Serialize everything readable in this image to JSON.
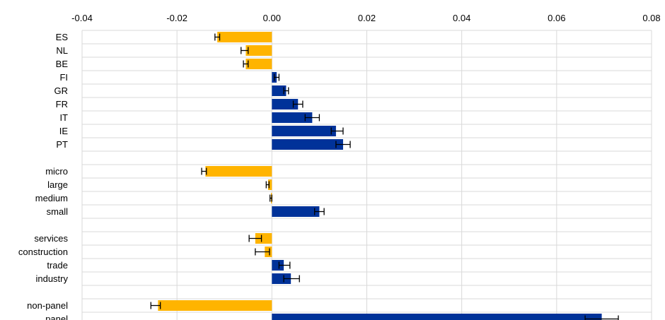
{
  "chart_data": {
    "type": "bar",
    "orientation": "horizontal",
    "title": "",
    "xlabel": "",
    "ylabel": "",
    "xlim": [
      -0.04,
      0.08
    ],
    "x_ticks": [
      "-0.04",
      "-0.02",
      "0.00",
      "0.02",
      "0.04",
      "0.06",
      "0.08"
    ],
    "x_tick_values": [
      -0.04,
      -0.02,
      0.0,
      0.02,
      0.04,
      0.06,
      0.08
    ],
    "x_axis_position": "top",
    "grid": true,
    "legend": "none",
    "colors": {
      "negative": "#FFB400",
      "positive": "#003299",
      "error_bar": "#000000"
    },
    "categories": [
      "ES",
      "NL",
      "BE",
      "FI",
      "GR",
      "FR",
      "IT",
      "IE",
      "PT",
      "",
      "micro",
      "large",
      "medium",
      "small",
      "",
      "services",
      "construction",
      "trade",
      "industry",
      "",
      "non-panel",
      "panel"
    ],
    "values": [
      -0.0115,
      -0.0055,
      -0.0055,
      0.001,
      0.003,
      0.0055,
      0.0085,
      0.0135,
      0.015,
      null,
      -0.014,
      -0.0008,
      -0.0002,
      0.01,
      null,
      -0.0035,
      -0.0015,
      0.0025,
      0.004,
      null,
      -0.024,
      0.0695
    ],
    "error_low": [
      -0.012,
      -0.0065,
      -0.006,
      0.0005,
      0.0025,
      0.0045,
      0.007,
      0.0125,
      0.0135,
      null,
      -0.0148,
      -0.0012,
      -0.0004,
      0.009,
      null,
      -0.0048,
      -0.0035,
      0.0015,
      0.0025,
      null,
      -0.0255,
      0.066
    ],
    "error_high": [
      -0.011,
      -0.005,
      -0.005,
      0.0015,
      0.0035,
      0.0065,
      0.01,
      0.015,
      0.0165,
      null,
      -0.0138,
      -0.0006,
      0.0,
      0.011,
      null,
      -0.0022,
      -0.0005,
      0.0038,
      0.0058,
      null,
      -0.0235,
      0.073
    ]
  }
}
